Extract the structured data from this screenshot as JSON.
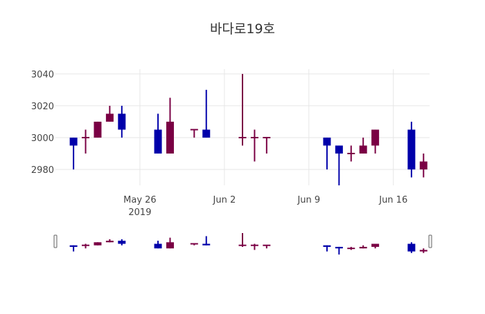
{
  "chart_data": {
    "type": "candlestick",
    "title": "바다로19호",
    "xlabel": "",
    "ylabel": "",
    "ylim": [
      2970,
      3043
    ],
    "x_ticks": [
      {
        "date": "2019-05-26",
        "label": "May 26",
        "sublabel": "2019"
      },
      {
        "date": "2019-06-02",
        "label": "Jun 2",
        "sublabel": ""
      },
      {
        "date": "2019-06-09",
        "label": "Jun 9",
        "sublabel": ""
      },
      {
        "date": "2019-06-16",
        "label": "Jun 16",
        "sublabel": ""
      }
    ],
    "y_ticks": [
      2980,
      3000,
      3020,
      3040
    ],
    "grid": true,
    "rangeslider": true,
    "colors": {
      "increasing": "#7a0044",
      "decreasing": "#0000aa",
      "grid": "#e6e6e6",
      "text": "#444444"
    },
    "candles": [
      {
        "date": "2019-05-20",
        "open": 3000,
        "high": 3000,
        "low": 2980,
        "close": 2995
      },
      {
        "date": "2019-05-21",
        "open": 3000,
        "high": 3005,
        "low": 2990,
        "close": 3000
      },
      {
        "date": "2019-05-22",
        "open": 3000,
        "high": 3010,
        "low": 3000,
        "close": 3010
      },
      {
        "date": "2019-05-23",
        "open": 3010,
        "high": 3020,
        "low": 3010,
        "close": 3015
      },
      {
        "date": "2019-05-24",
        "open": 3015,
        "high": 3020,
        "low": 3000,
        "close": 3005
      },
      {
        "date": "2019-05-27",
        "open": 3005,
        "high": 3015,
        "low": 2990,
        "close": 2990
      },
      {
        "date": "2019-05-28",
        "open": 2990,
        "high": 3025,
        "low": 2990,
        "close": 3010
      },
      {
        "date": "2019-05-30",
        "open": 3005,
        "high": 3005,
        "low": 3000,
        "close": 3005
      },
      {
        "date": "2019-05-31",
        "open": 3005,
        "high": 3030,
        "low": 3000,
        "close": 3000
      },
      {
        "date": "2019-06-03",
        "open": 3000,
        "high": 3040,
        "low": 2995,
        "close": 3000
      },
      {
        "date": "2019-06-04",
        "open": 3000,
        "high": 3005,
        "low": 2985,
        "close": 3000
      },
      {
        "date": "2019-06-05",
        "open": 3000,
        "high": 3000,
        "low": 2990,
        "close": 3000
      },
      {
        "date": "2019-06-10",
        "open": 3000,
        "high": 3000,
        "low": 2980,
        "close": 2995
      },
      {
        "date": "2019-06-11",
        "open": 2995,
        "high": 2995,
        "low": 2970,
        "close": 2990
      },
      {
        "date": "2019-06-12",
        "open": 2990,
        "high": 2995,
        "low": 2985,
        "close": 2990
      },
      {
        "date": "2019-06-13",
        "open": 2990,
        "high": 3000,
        "low": 2990,
        "close": 2995
      },
      {
        "date": "2019-06-14",
        "open": 2995,
        "high": 3005,
        "low": 2990,
        "close": 3005
      },
      {
        "date": "2019-06-17",
        "open": 3005,
        "high": 3010,
        "low": 2975,
        "close": 2980
      },
      {
        "date": "2019-06-18",
        "open": 2980,
        "high": 2990,
        "low": 2975,
        "close": 2985
      }
    ]
  }
}
